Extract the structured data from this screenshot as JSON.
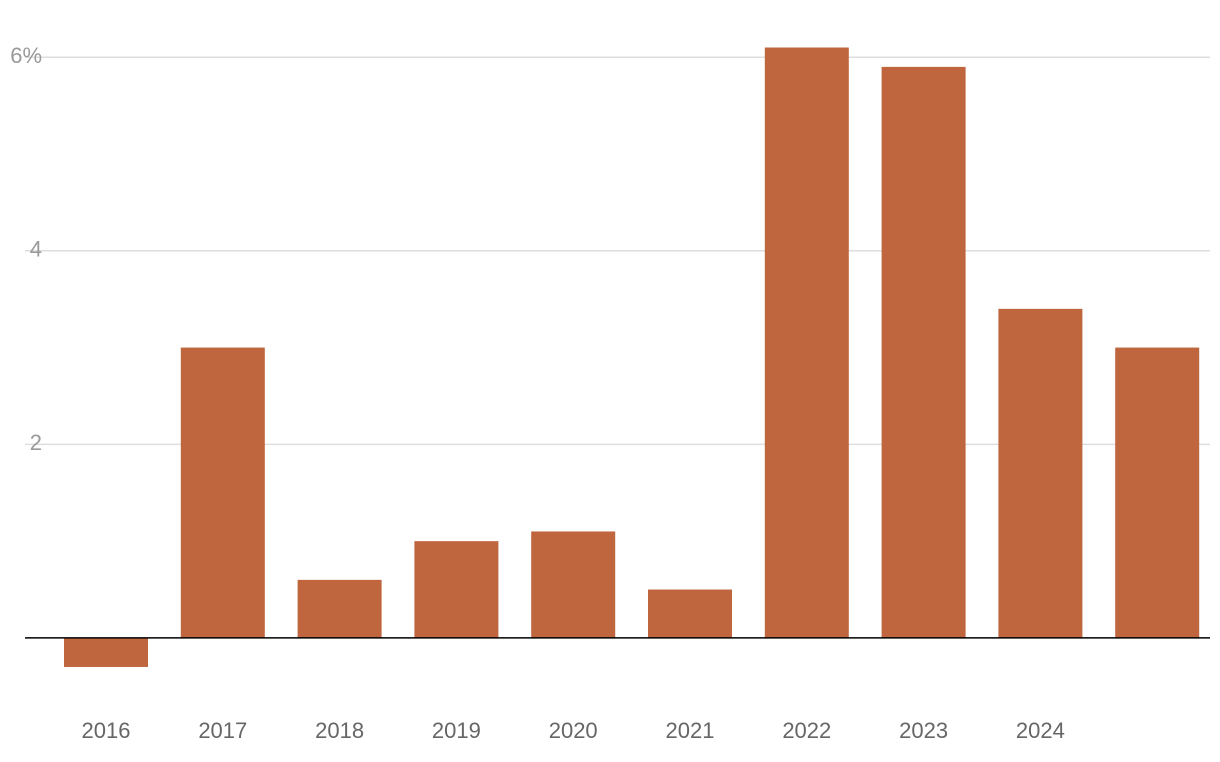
{
  "chart_data": {
    "type": "bar",
    "categories": [
      "2016",
      "2017",
      "2018",
      "2019",
      "2020",
      "2021",
      "2022",
      "2023",
      "2024",
      null
    ],
    "values": [
      -0.3,
      3.0,
      0.6,
      1.0,
      1.1,
      0.5,
      6.1,
      5.9,
      3.4,
      3.0
    ],
    "color": "#bf663f",
    "ylim": [
      -0.6,
      6.5
    ],
    "yticks": [
      2,
      4,
      {
        "value": 6,
        "label": "6%"
      }
    ],
    "grid": true
  }
}
